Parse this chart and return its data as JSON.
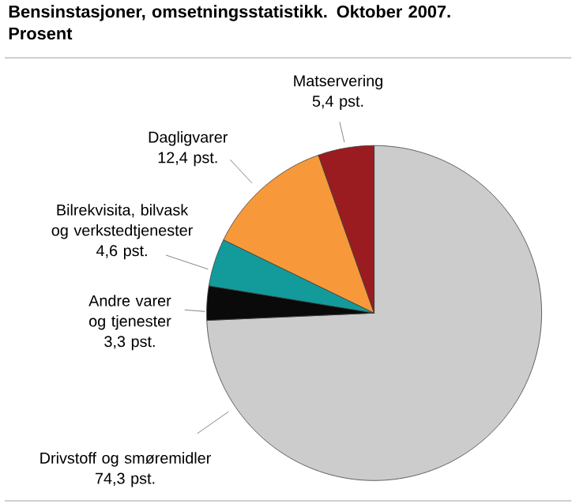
{
  "chart_data": {
    "type": "pie",
    "title": "Bensinstasjoner, omsetningsstatistikk. Oktober 2007. Prosent",
    "categories": [
      "Drivstoff og smøremidler",
      "Andre varer og tjenester",
      "Bilrekvisita, bilvask og verkstedtjenester",
      "Dagligvarer",
      "Matservering"
    ],
    "values": [
      74.3,
      3.3,
      4.6,
      12.4,
      5.4
    ],
    "colors": [
      "#cccccc",
      "#0a0a0a",
      "#139b9b",
      "#f7993a",
      "#9b1c20"
    ],
    "value_labels": [
      "74,3 pst.",
      "3,3 pst.",
      "4,6 pst.",
      "12,4 pst.",
      "5,4 pst."
    ]
  }
}
